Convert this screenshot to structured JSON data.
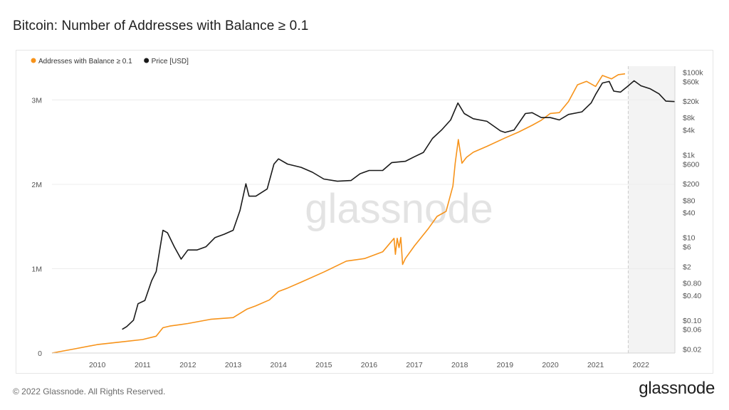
{
  "page": {
    "title": "Bitcoin: Number of Addresses with Balance ≥ 0.1",
    "copyright": "© 2022 Glassnode. All Rights Reserved.",
    "logo": "glassnode",
    "watermark": "glassnode"
  },
  "chart_data": {
    "type": "line",
    "title": "Bitcoin: Number of Addresses with Balance ≥ 0.1",
    "grid": true,
    "legend_position": "top-left",
    "x_axis": {
      "type": "time",
      "ticks": [
        "2010",
        "2011",
        "2012",
        "2013",
        "2014",
        "2015",
        "2016",
        "2017",
        "2018",
        "2019",
        "2020",
        "2021",
        "2022"
      ],
      "range": [
        2009.0,
        2022.75
      ]
    },
    "y_left": {
      "ticks": [
        {
          "value": 0,
          "label": "0"
        },
        {
          "value": 1000000,
          "label": "1M"
        },
        {
          "value": 2000000,
          "label": "2M"
        },
        {
          "value": 3000000,
          "label": "3M"
        }
      ],
      "range": [
        0,
        3400000
      ]
    },
    "y_right": {
      "scale": "log",
      "ticks": [
        {
          "value": 0.02,
          "label": "$0.02"
        },
        {
          "value": 0.06,
          "label": "$0.06"
        },
        {
          "value": 0.1,
          "label": "$0.10"
        },
        {
          "value": 0.4,
          "label": "$0.40"
        },
        {
          "value": 0.8,
          "label": "$0.80"
        },
        {
          "value": 2,
          "label": "$2"
        },
        {
          "value": 6,
          "label": "$6"
        },
        {
          "value": 10,
          "label": "$10"
        },
        {
          "value": 40,
          "label": "$40"
        },
        {
          "value": 80,
          "label": "$80"
        },
        {
          "value": 200,
          "label": "$200"
        },
        {
          "value": 600,
          "label": "$600"
        },
        {
          "value": 1000,
          "label": "$1k"
        },
        {
          "value": 4000,
          "label": "$4k"
        },
        {
          "value": 8000,
          "label": "$8k"
        },
        {
          "value": 20000,
          "label": "$20k"
        },
        {
          "value": 60000,
          "label": "$60k"
        },
        {
          "value": 100000,
          "label": "$100k"
        }
      ],
      "range": [
        0.016,
        140000
      ]
    },
    "series": [
      {
        "name": "Addresses with Balance ≥ 0.1",
        "color": "#f7931a",
        "axis": "left",
        "x": [
          2009.0,
          2009.5,
          2010.0,
          2010.5,
          2011.0,
          2011.3,
          2011.45,
          2011.6,
          2012.0,
          2012.5,
          2013.0,
          2013.3,
          2013.5,
          2013.8,
          2014.0,
          2014.2,
          2014.5,
          2015.0,
          2015.5,
          2015.9,
          2016.0,
          2016.3,
          2016.55,
          2016.58,
          2016.62,
          2016.66,
          2016.7,
          2016.74,
          2016.8,
          2017.0,
          2017.3,
          2017.5,
          2017.7,
          2017.85,
          2017.9,
          2017.97,
          2018.05,
          2018.15,
          2018.3,
          2018.6,
          2019.0,
          2019.3,
          2019.6,
          2019.8,
          2020.0,
          2020.2,
          2020.4,
          2020.6,
          2020.8,
          2021.0,
          2021.15,
          2021.35,
          2021.5,
          2021.65
        ],
        "y": [
          0,
          50000,
          100000,
          130000,
          160000,
          200000,
          300000,
          320000,
          350000,
          400000,
          420000,
          520000,
          560000,
          630000,
          730000,
          770000,
          840000,
          960000,
          1090000,
          1120000,
          1140000,
          1200000,
          1360000,
          1170000,
          1360000,
          1250000,
          1370000,
          1050000,
          1120000,
          1270000,
          1470000,
          1620000,
          1680000,
          1980000,
          2250000,
          2530000,
          2250000,
          2320000,
          2380000,
          2450000,
          2550000,
          2620000,
          2700000,
          2760000,
          2840000,
          2850000,
          2980000,
          3180000,
          3220000,
          3160000,
          3290000,
          3250000,
          3300000,
          3310000
        ]
      },
      {
        "name": "Price [USD]",
        "color": "#1a1a1a",
        "axis": "right",
        "x": [
          2010.55,
          2010.65,
          2010.8,
          2010.9,
          2011.05,
          2011.2,
          2011.3,
          2011.45,
          2011.55,
          2011.7,
          2011.85,
          2012.0,
          2012.2,
          2012.4,
          2012.6,
          2012.8,
          2013.0,
          2013.15,
          2013.28,
          2013.35,
          2013.5,
          2013.75,
          2013.9,
          2014.0,
          2014.2,
          2014.5,
          2014.75,
          2015.0,
          2015.3,
          2015.6,
          2015.8,
          2016.0,
          2016.3,
          2016.5,
          2016.8,
          2017.0,
          2017.2,
          2017.4,
          2017.6,
          2017.8,
          2017.96,
          2018.1,
          2018.3,
          2018.6,
          2018.9,
          2019.0,
          2019.2,
          2019.45,
          2019.6,
          2019.8,
          2020.0,
          2020.2,
          2020.4,
          2020.7,
          2020.9,
          2021.0,
          2021.15,
          2021.3,
          2021.4,
          2021.55,
          2021.7,
          2021.85,
          2022.0,
          2022.2,
          2022.4,
          2022.55,
          2022.75
        ],
        "y": [
          0.06,
          0.07,
          0.1,
          0.25,
          0.3,
          0.9,
          1.5,
          15,
          13,
          6,
          3,
          5,
          5,
          6,
          10,
          12,
          15,
          45,
          200,
          100,
          100,
          150,
          600,
          800,
          600,
          500,
          380,
          260,
          230,
          240,
          350,
          420,
          420,
          650,
          700,
          900,
          1150,
          2500,
          4000,
          7000,
          18000,
          10000,
          7500,
          6500,
          3800,
          3500,
          4000,
          10000,
          10500,
          8000,
          8000,
          7000,
          9500,
          11000,
          18000,
          29000,
          55000,
          60000,
          35000,
          33000,
          45000,
          62000,
          47000,
          40000,
          30000,
          20000,
          19500
        ]
      }
    ]
  }
}
